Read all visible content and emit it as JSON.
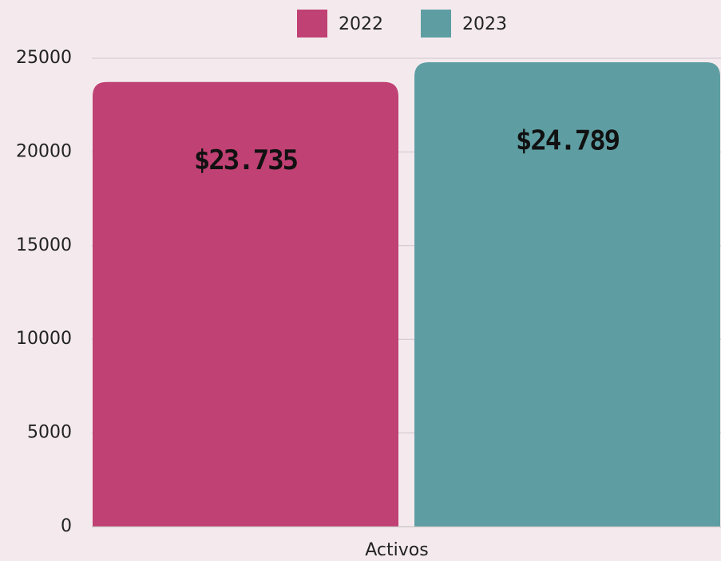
{
  "chart_data": {
    "type": "bar",
    "categories": [
      "Activos"
    ],
    "series": [
      {
        "name": "2022",
        "color": "#c04173",
        "values": [
          23735
        ],
        "value_labels": [
          "$23.735"
        ]
      },
      {
        "name": "2023",
        "color": "#5e9ea3",
        "values": [
          24789
        ],
        "value_labels": [
          "$24.789"
        ]
      }
    ],
    "ylim": [
      0,
      25000
    ],
    "yticks": [
      0,
      5000,
      10000,
      15000,
      20000,
      25000
    ],
    "grid": true,
    "legend": "top"
  }
}
